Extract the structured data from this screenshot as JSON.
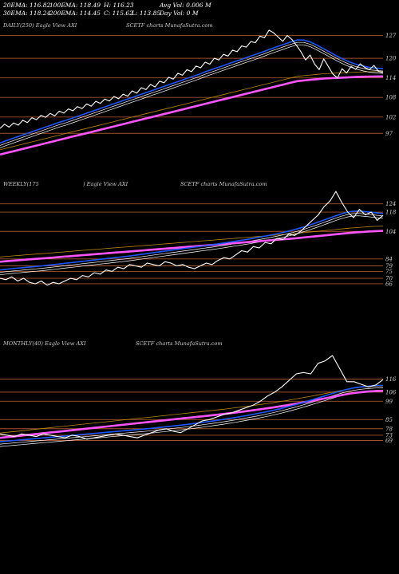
{
  "header": {
    "ema20": "20EMA: 116.82",
    "ema100": "100EMA: 118.49",
    "ema30": "30EMA: 118.24",
    "ema200": "200EMA: 114.45",
    "high": "H: 116.23",
    "close": "C: 115.62",
    "low": "L: 113.85",
    "avg_vol": "Avg Vol: 0.006  M",
    "day_vol": "Day Vol: 0  M"
  },
  "colors": {
    "background": "#000000",
    "price": "#ffffff",
    "ema_fast": "#1e56ff",
    "ema_slow": "#ff55ff",
    "ema_mid": "#ffffff",
    "ema_long": "#b8860b",
    "level": "#a0522d"
  },
  "chart_data": [
    {
      "type": "line",
      "panel_title": "DAILY(250) Eagle  View  AXI",
      "watermark": "SCETF charts MunafaSutra.com",
      "y_ticks": [
        "127",
        "120",
        "114",
        "108",
        "102",
        "97"
      ],
      "y_values": [
        127,
        120,
        114,
        108,
        102,
        97
      ],
      "ylim": [
        89,
        132
      ],
      "series": [
        {
          "key": "price",
          "values": [
            98.5,
            99.8,
            98.9,
            100.2,
            99.5,
            101.0,
            100.3,
            101.8,
            101.2,
            102.5,
            101.9,
            103.1,
            102.4,
            103.8,
            103.2,
            104.5,
            103.9,
            105.2,
            104.6,
            106.0,
            105.3,
            106.8,
            106.2,
            107.5,
            106.9,
            108.3,
            107.6,
            109.0,
            108.4,
            110.0,
            109.3,
            111.0,
            110.4,
            112.0,
            111.2,
            113.0,
            112.5,
            114.2,
            113.6,
            115.4,
            114.8,
            116.5,
            115.9,
            117.6,
            117.1,
            118.8,
            118.2,
            120.0,
            119.5,
            121.2,
            120.7,
            122.5,
            122.0,
            123.8,
            123.4,
            125.1,
            124.8,
            126.8,
            126.3,
            128.6,
            127.8,
            126.5,
            125.2,
            127.0,
            125.8,
            124.0,
            122.0,
            119.5,
            121.0,
            118.2,
            116.5,
            119.8,
            117.5,
            115.2,
            114.0,
            116.8,
            115.5,
            117.5,
            116.6,
            118.3,
            117.2,
            116.5,
            117.8,
            116.0,
            115.62
          ]
        },
        {
          "key": "ema_fast",
          "values": [
            94.0,
            94.8,
            95.5,
            96.2,
            96.9,
            97.6,
            98.3,
            99.0,
            99.7,
            100.4,
            101.0,
            101.7,
            102.4,
            103.1,
            103.8,
            104.5,
            105.2,
            105.9,
            106.6,
            107.3,
            108.0,
            108.7,
            109.4,
            110.1,
            110.8,
            111.5,
            112.2,
            112.9,
            113.6,
            114.3,
            115.0,
            115.8,
            116.5,
            117.2,
            117.9,
            118.6,
            119.3,
            120.0,
            120.7,
            121.4,
            122.1,
            122.9,
            123.6,
            124.3,
            125.0,
            125.6,
            125.6,
            125.0,
            124.0,
            122.9,
            121.8,
            120.7,
            119.7,
            118.8,
            118.1,
            117.6,
            117.2,
            117.0,
            116.82
          ]
        },
        {
          "key": "ema_slow",
          "values": [
            90.5,
            91.0,
            91.5,
            92.0,
            92.5,
            93.0,
            93.5,
            94.0,
            94.5,
            95.0,
            95.5,
            96.0,
            96.5,
            97.0,
            97.5,
            98.0,
            98.5,
            99.0,
            99.5,
            100.0,
            100.5,
            101.0,
            101.5,
            102.0,
            102.5,
            103.0,
            103.5,
            104.0,
            104.5,
            105.0,
            105.5,
            106.0,
            106.5,
            107.0,
            107.5,
            108.0,
            108.5,
            109.0,
            109.5,
            110.0,
            110.5,
            111.0,
            111.5,
            112.0,
            112.5,
            113.0,
            113.2,
            113.4,
            113.6,
            113.8,
            113.9,
            114.0,
            114.1,
            114.2,
            114.3,
            114.35,
            114.4,
            114.43,
            114.45
          ]
        }
      ],
      "levels": [
        127,
        120,
        114,
        108,
        102,
        97
      ]
    },
    {
      "type": "line",
      "panel_title": "WEEKLY(175",
      "panel_title_b": ") Eagle  View  AXI",
      "watermark": "SCETF charts MunafaSutra.com",
      "y_ticks": [
        "124",
        "118",
        "104",
        "84",
        "79",
        "75",
        "70",
        "66"
      ],
      "y_values": [
        124,
        118,
        104,
        84,
        79,
        75,
        70,
        66
      ],
      "ylim": [
        55,
        140
      ],
      "series": [
        {
          "key": "price",
          "values": [
            70,
            69,
            71,
            68,
            70,
            67,
            66,
            68,
            65,
            67,
            66,
            68,
            70,
            69,
            72,
            71,
            74,
            73,
            76,
            75,
            78,
            77,
            80,
            79,
            78,
            81,
            80,
            79,
            82,
            81,
            79,
            80,
            78,
            77,
            79,
            81,
            80,
            83,
            85,
            84,
            87,
            90,
            89,
            93,
            92,
            96,
            95,
            99,
            98,
            102,
            101,
            104,
            108,
            112,
            116,
            122,
            126,
            133,
            125,
            118,
            114,
            120,
            116,
            118,
            112,
            115.6
          ]
        },
        {
          "key": "ema_fast",
          "values": [
            76,
            76.5,
            77,
            77.4,
            77.8,
            78.2,
            78.6,
            79,
            79.5,
            80,
            80.5,
            81,
            81.5,
            82,
            82.5,
            83,
            83.5,
            84,
            84.5,
            85,
            85.5,
            86,
            86.6,
            87.2,
            87.8,
            88.4,
            89,
            89.6,
            90.2,
            90.8,
            91.4,
            92,
            92.6,
            93.2,
            93.8,
            94.4,
            95,
            95.7,
            96.4,
            97.1,
            97.8,
            98.5,
            99.3,
            100.1,
            100.9,
            101.8,
            102.7,
            103.7,
            104.8,
            106,
            107.3,
            108.7,
            110.2,
            111.8,
            113.4,
            115,
            116.5,
            117.8,
            118.6,
            118.8,
            118.4,
            117.9,
            117.4,
            117
          ]
        },
        {
          "key": "ema_slow",
          "values": [
            82,
            82.4,
            82.8,
            83.2,
            83.6,
            84,
            84.4,
            84.8,
            85.2,
            85.6,
            86,
            86.4,
            86.8,
            87.2,
            87.6,
            88,
            88.4,
            88.8,
            89.2,
            89.6,
            90,
            90.4,
            90.8,
            91.2,
            91.6,
            92,
            92.4,
            92.8,
            93.2,
            93.6,
            94,
            94.4,
            94.8,
            95.2,
            95.6,
            96,
            96.4,
            96.8,
            97.2,
            97.6,
            98,
            98.4,
            98.8,
            99.3,
            99.8,
            100.3,
            100.8,
            101.3,
            101.8,
            102.3,
            102.8,
            103.2,
            103.6,
            104,
            104.2,
            104.4
          ]
        }
      ],
      "levels": [
        124,
        118,
        104,
        84,
        79,
        75,
        70,
        66
      ]
    },
    {
      "type": "line",
      "panel_title": "MONTHLY(40) Eagle  View  AXI",
      "watermark": "SCETF charts MunafaSutra.com",
      "y_ticks": [
        "116",
        "106",
        "99",
        "85",
        "78",
        "73",
        "69"
      ],
      "y_values": [
        116,
        106,
        99,
        85,
        78,
        73,
        69
      ],
      "ylim": [
        40,
        145
      ],
      "series": [
        {
          "key": "price",
          "values": [
            74,
            73,
            72,
            74,
            73,
            72,
            74,
            73,
            72,
            71,
            73,
            72,
            70,
            71,
            72,
            73,
            74,
            73,
            72,
            71,
            73,
            75,
            77,
            78,
            76,
            75,
            78,
            81,
            84,
            85,
            87,
            89,
            90,
            92,
            94,
            96,
            99,
            103,
            106,
            110,
            115,
            120,
            121,
            120,
            128,
            130,
            134,
            124,
            114,
            114,
            112,
            110,
            111.5,
            115.6
          ]
        },
        {
          "key": "ema_fast",
          "values": [
            68,
            68.5,
            69,
            69.5,
            70,
            70.5,
            71,
            71.5,
            72,
            72.5,
            73,
            73.5,
            74,
            74.5,
            75,
            75.5,
            76,
            76.5,
            77,
            77.5,
            78,
            78.6,
            79.2,
            79.8,
            80.4,
            81,
            81.7,
            82.4,
            83.2,
            84,
            84.8,
            85.7,
            86.6,
            87.6,
            88.6,
            89.7,
            90.8,
            92,
            93.3,
            94.7,
            96.2,
            97.8,
            99.5,
            101.2,
            103,
            104.8,
            106.5,
            108,
            109.2,
            110,
            110.6,
            111,
            111.2
          ]
        },
        {
          "key": "ema_slow",
          "values": [
            71,
            71.6,
            72.2,
            72.8,
            73.4,
            74,
            74.6,
            75.2,
            75.8,
            76.4,
            77,
            77.6,
            78.2,
            78.8,
            79.4,
            80,
            80.6,
            81.2,
            81.8,
            82.4,
            83,
            83.6,
            84.2,
            84.8,
            85.4,
            86,
            86.6,
            87.2,
            87.8,
            88.4,
            89,
            89.7,
            90.4,
            91.1,
            91.8,
            92.6,
            93.4,
            94.2,
            95.1,
            96,
            97,
            98,
            99,
            100,
            101.1,
            102.2,
            103.3,
            104.4,
            105.3,
            106,
            106.5,
            106.8,
            107
          ]
        }
      ],
      "levels": [
        116,
        106,
        99,
        85,
        78,
        73,
        69
      ]
    }
  ]
}
